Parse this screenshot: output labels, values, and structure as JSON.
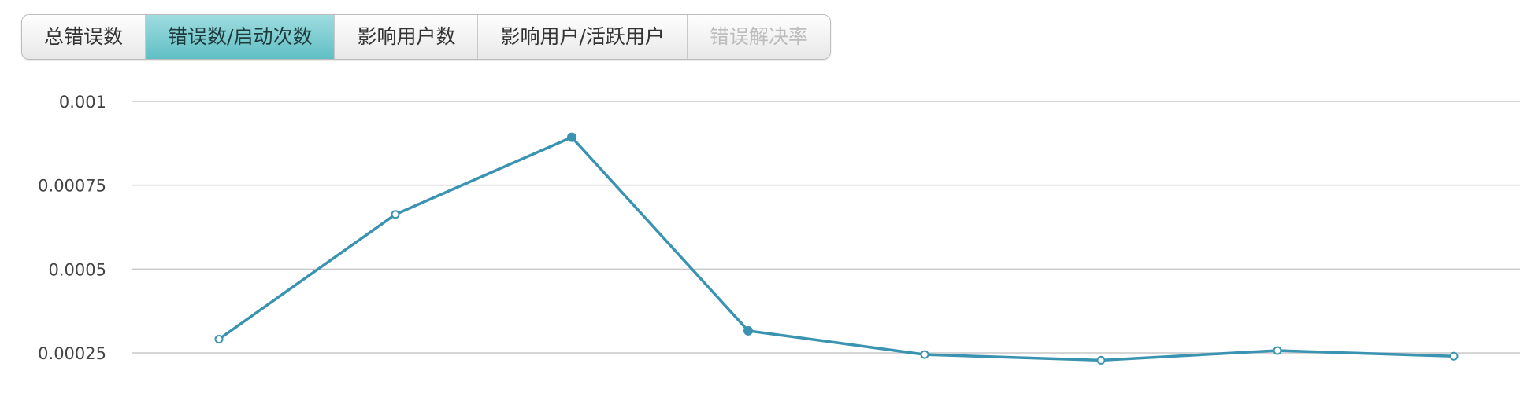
{
  "tabs": [
    {
      "label": "总错误数",
      "state": "normal"
    },
    {
      "label": "错误数/启动次数",
      "state": "active"
    },
    {
      "label": "影响用户数",
      "state": "normal"
    },
    {
      "label": "影响用户/活跃用户",
      "state": "normal"
    },
    {
      "label": "错误解决率",
      "state": "disabled"
    }
  ],
  "chart_data": {
    "type": "line",
    "title": "",
    "xlabel": "",
    "ylabel": "",
    "x": [
      1,
      2,
      3,
      4,
      5,
      6,
      7,
      8
    ],
    "series": [
      {
        "values": [
          0.000291,
          0.000663,
          0.000893,
          0.000316,
          0.000245,
          0.000228,
          0.000257,
          0.00024
        ],
        "color": "#3a93b1"
      }
    ],
    "ylim": [
      0.00025,
      0.001
    ],
    "yticks": [
      {
        "value": 0.001,
        "label": "0.001"
      },
      {
        "value": 0.00075,
        "label": "0.00075"
      },
      {
        "value": 0.0005,
        "label": "0.0005"
      },
      {
        "value": 0.00025,
        "label": "0.00025"
      }
    ],
    "grid": true,
    "legend": "none",
    "filled_points": [
      3,
      4
    ]
  }
}
